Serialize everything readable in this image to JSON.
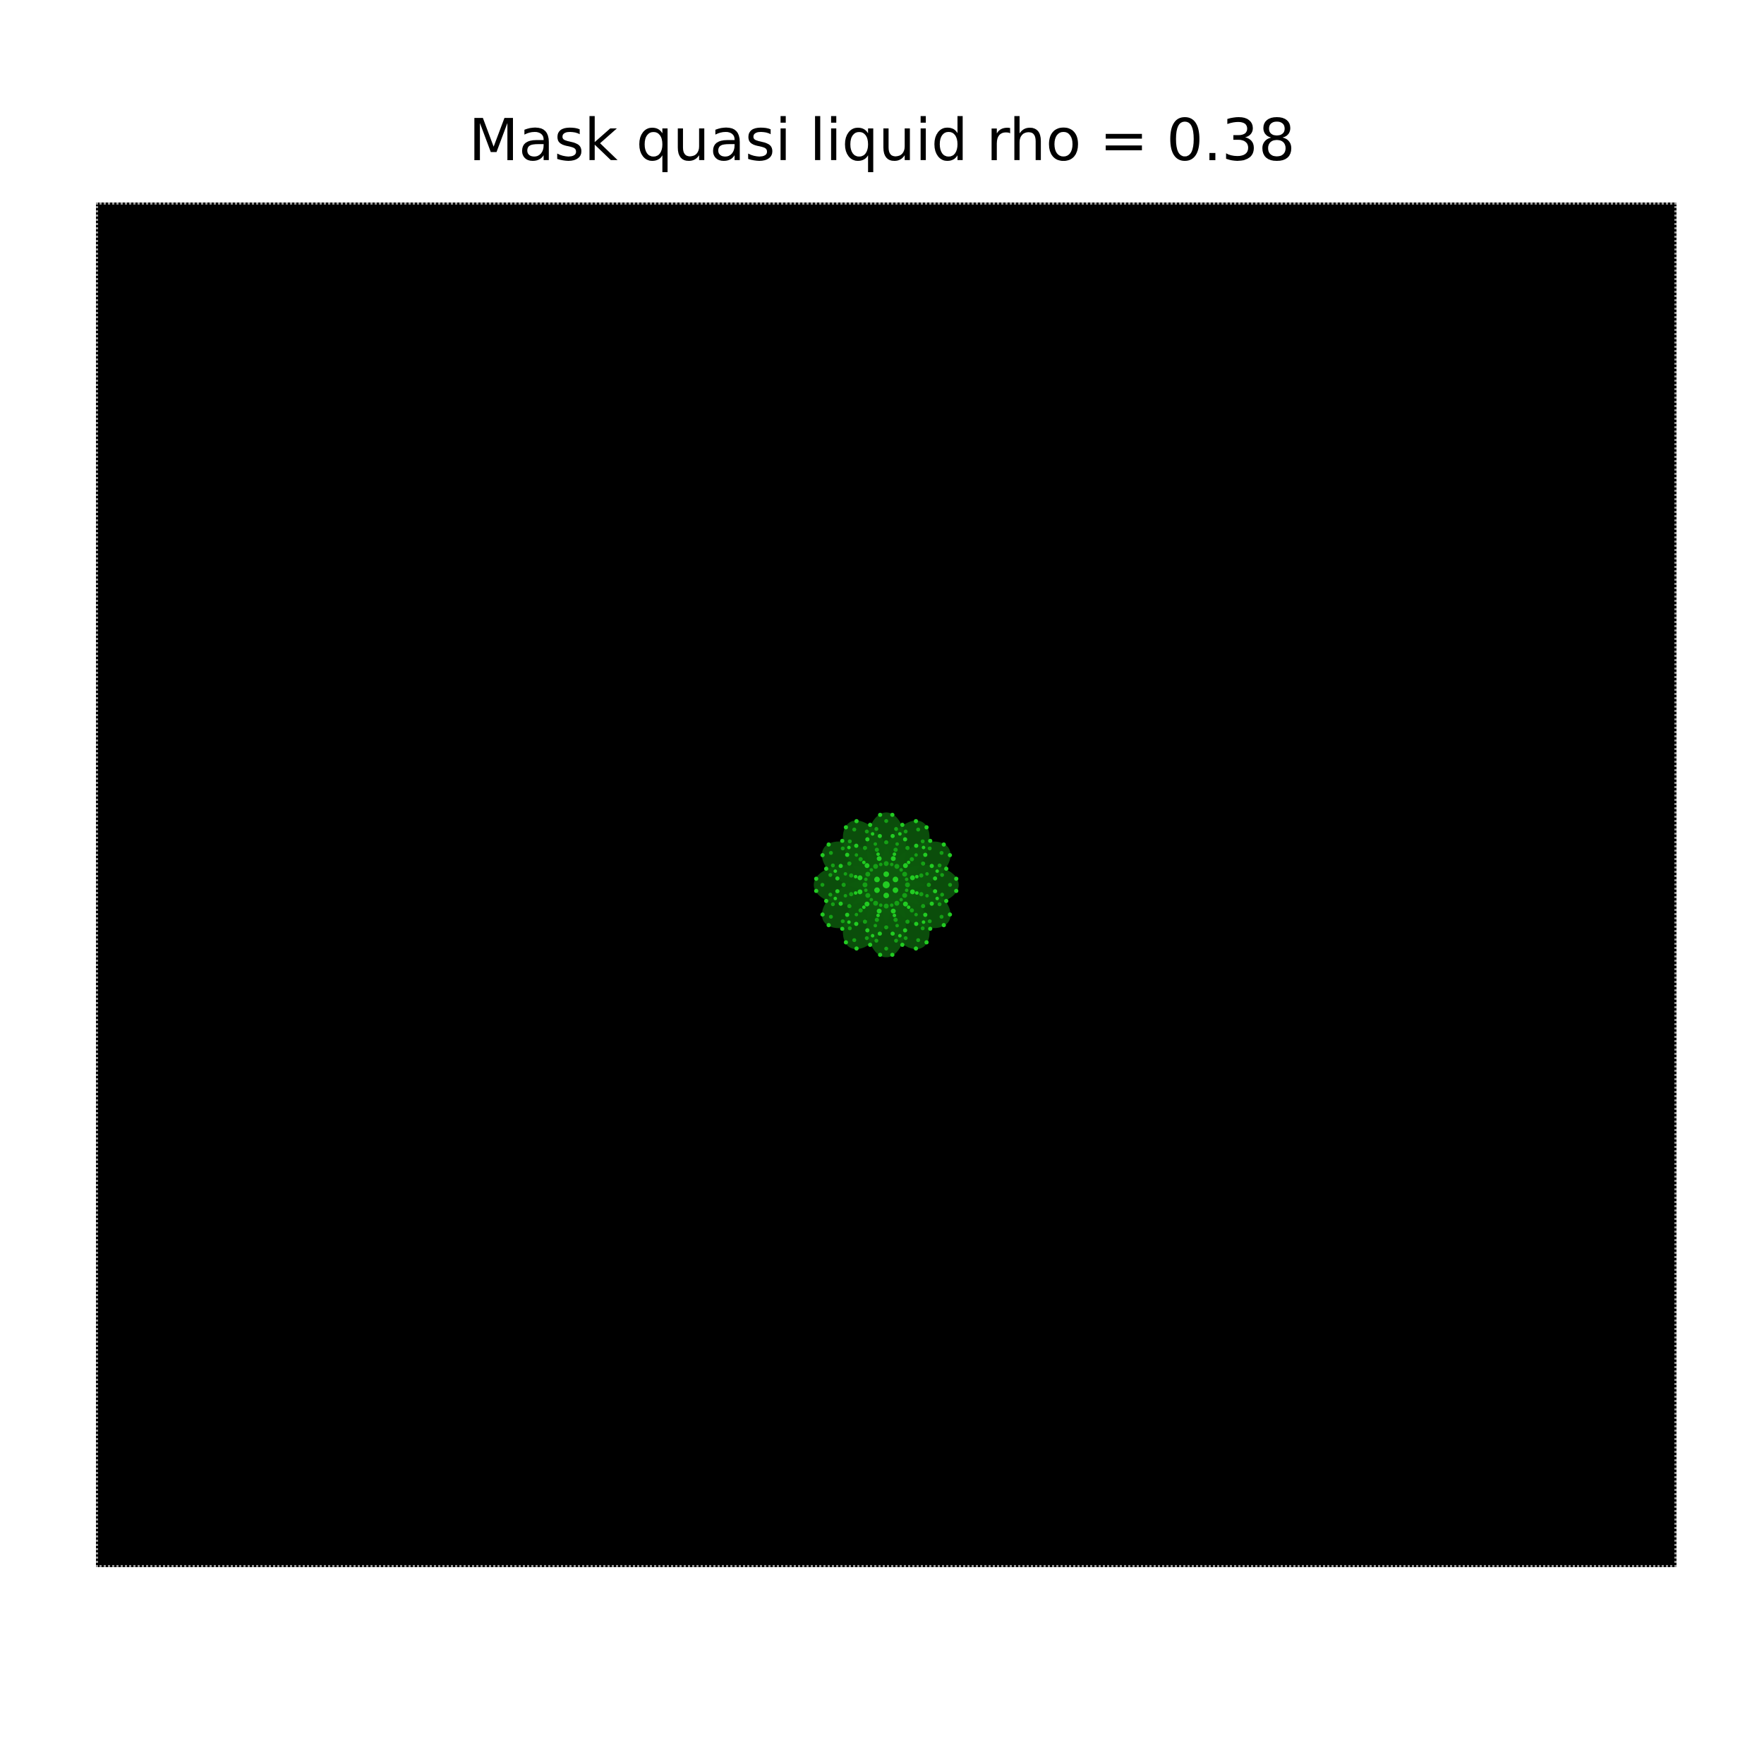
{
  "figure": {
    "title": "Mask quasi liquid rho = 0.38"
  },
  "colors": {
    "background": "#000000",
    "page": "#ffffff",
    "cluster_bright": "#22cc22",
    "cluster_mid": "#15a015",
    "cluster_dark": "#0d5a0d",
    "frame_dots": "#9a9a9a"
  },
  "cluster": {
    "symmetry": "12-fold rosette",
    "position": "center"
  }
}
